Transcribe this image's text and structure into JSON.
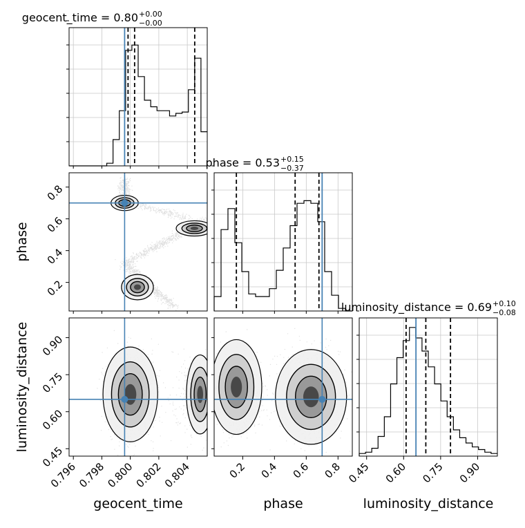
{
  "chart_data": {
    "type": "corner",
    "parameters": [
      "geocent_time",
      "phase",
      "luminosity_distance"
    ],
    "truths": {
      "geocent_time": 0.7996,
      "phase": 0.7,
      "luminosity_distance": 0.65
    },
    "titles": [
      {
        "main": "geocent_time = 0.80",
        "sup": "+0.00",
        "sub": "−0.00"
      },
      {
        "main": "phase = 0.53",
        "sup": "+0.15",
        "sub": "−0.37"
      },
      {
        "main": "luminosity_distance = 0.69",
        "sup": "+0.10",
        "sub": "−0.08"
      }
    ],
    "quantiles": {
      "geocent_time": [
        0.79984,
        0.8003,
        0.80452
      ],
      "phase": [
        0.16,
        0.53,
        0.68
      ],
      "luminosity_distance": [
        0.61,
        0.69,
        0.79
      ]
    },
    "ranges": {
      "geocent_time": [
        0.7957,
        0.8054
      ],
      "phase": [
        0.02,
        0.89
      ],
      "luminosity_distance": [
        0.42,
        0.98
      ]
    },
    "ticks": {
      "geocent_time": [
        "0.796",
        "0.798",
        "0.800",
        "0.802",
        "0.804"
      ],
      "phase": [
        "0.2",
        "0.4",
        "0.6",
        "0.8"
      ],
      "luminosity_distance": [
        "0.45",
        "0.60",
        "0.75",
        "0.90"
      ]
    },
    "histograms": {
      "geocent_time": [
        0,
        0,
        0,
        0,
        0,
        0,
        0.02,
        0.2,
        0.42,
        0.88,
        0.92,
        0.68,
        0.5,
        0.45,
        0.42,
        0.42,
        0.38,
        0.4,
        0.41,
        0.58,
        0.82,
        0.26
      ],
      "phase": [
        0.11,
        0.62,
        0.78,
        0.52,
        0.3,
        0.13,
        0.11,
        0.11,
        0.17,
        0.31,
        0.48,
        0.65,
        0.82,
        0.84,
        0.82,
        0.68,
        0.3,
        0.12,
        0.02,
        0
      ],
      "luminosity_distance": [
        0.02,
        0.03,
        0.06,
        0.15,
        0.3,
        0.55,
        0.75,
        0.88,
        0.98,
        0.9,
        0.8,
        0.68,
        0.55,
        0.42,
        0.3,
        0.2,
        0.14,
        0.1,
        0.07,
        0.05,
        0.03,
        0.02
      ]
    },
    "grid": true
  }
}
